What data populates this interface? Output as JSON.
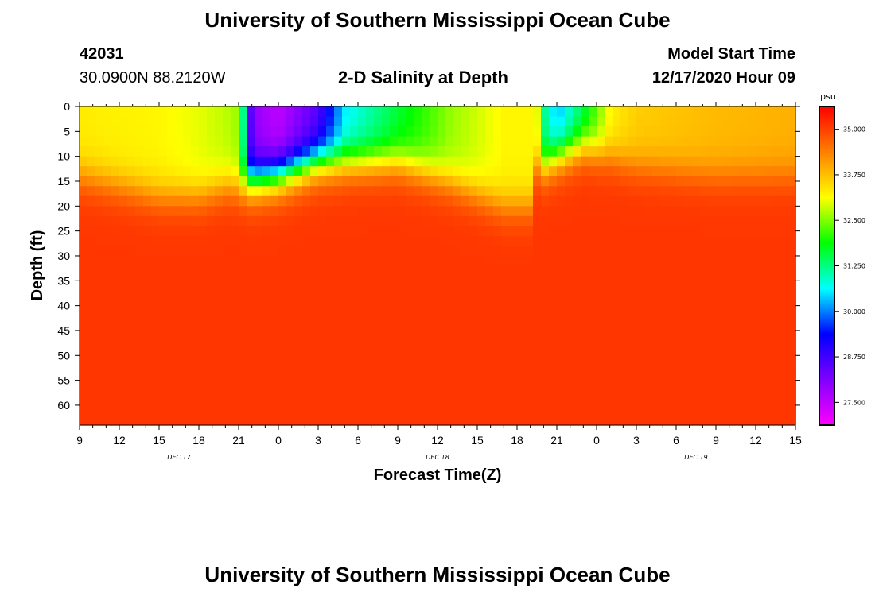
{
  "header": {
    "title": "University of Southern Mississippi Ocean Cube",
    "station_id": "42031",
    "location": "30.0900N 88.2120W",
    "model_label": "Model Start Time",
    "model_time": "12/17/2020 Hour 09"
  },
  "footer": {
    "title": "University of Southern Mississippi Ocean Cube"
  },
  "chart_data": {
    "type": "heatmap",
    "title": "2-D Salinity at Depth",
    "xlabel": "Forecast Time(Z)",
    "ylabel": "Depth (ft)",
    "x_tick_labels": [
      "9",
      "12",
      "15",
      "18",
      "21",
      "0",
      "3",
      "6",
      "9",
      "12",
      "15",
      "18",
      "21",
      "0",
      "3",
      "6",
      "9",
      "12",
      "15"
    ],
    "x_date_labels": [
      {
        "label": "DEC 17",
        "tick_index": 2.5
      },
      {
        "label": "DEC 18",
        "tick_index": 9
      },
      {
        "label": "DEC 19",
        "tick_index": 15.5
      }
    ],
    "y_ticks": [
      0,
      5,
      10,
      15,
      20,
      25,
      30,
      35,
      40,
      45,
      50,
      55,
      60
    ],
    "ylim": [
      0,
      64
    ],
    "colorbar": {
      "unit": "psu",
      "range": [
        26.875,
        35.625
      ],
      "ticks": [
        "35.000",
        "33.750",
        "32.500",
        "31.250",
        "30.000",
        "28.750",
        "27.500"
      ],
      "tick_values": [
        35.0,
        33.75,
        32.5,
        31.25,
        30.0,
        28.75,
        27.5
      ],
      "colormap": [
        "#ff00ff",
        "#8000ff",
        "#0000ff",
        "#00ffff",
        "#00ff00",
        "#ffff00",
        "#ff8000",
        "#ff0000"
      ]
    },
    "field_profile": {
      "x_hours": [
        0,
        6,
        9,
        11,
        12,
        13,
        15,
        18,
        20,
        24,
        28,
        32,
        34,
        34.5,
        35,
        36,
        38,
        40,
        42,
        48,
        54
      ],
      "surface_psu": [
        33.3,
        33.2,
        33.0,
        32.8,
        32.6,
        28.0,
        27.5,
        28.5,
        30.5,
        31.6,
        32.6,
        33.2,
        33.2,
        33.0,
        31.2,
        30.2,
        31.5,
        33.2,
        33.6,
        33.8,
        33.9
      ],
      "halocline_depth_ft": [
        14,
        18,
        18,
        16,
        16,
        15,
        14,
        11,
        11,
        11,
        15,
        20,
        20,
        12,
        12,
        10,
        8,
        10,
        12,
        14,
        14
      ],
      "deep_psu": 35.1
    }
  }
}
